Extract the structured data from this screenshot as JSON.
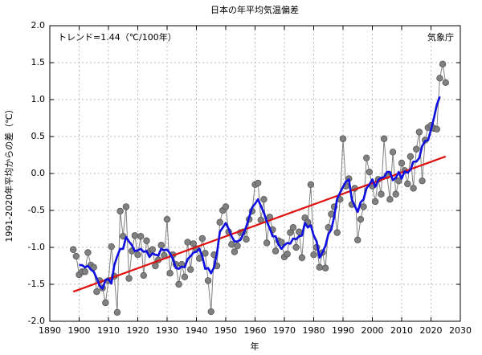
{
  "chart_data": {
    "type": "line",
    "title": "日本の年平均気温偏差",
    "x_label": "年",
    "y_label": "1991-2020年平均からの差（℃）",
    "annotations": [
      "トレンド=1.44（℃/100年）",
      "気象庁"
    ],
    "x": [
      1898,
      1899,
      1900,
      1901,
      1902,
      1903,
      1904,
      1905,
      1906,
      1907,
      1908,
      1909,
      1910,
      1911,
      1912,
      1913,
      1914,
      1915,
      1916,
      1917,
      1918,
      1919,
      1920,
      1921,
      1922,
      1923,
      1924,
      1925,
      1926,
      1927,
      1928,
      1929,
      1930,
      1931,
      1932,
      1933,
      1934,
      1935,
      1936,
      1937,
      1938,
      1939,
      1940,
      1941,
      1942,
      1943,
      1944,
      1945,
      1946,
      1947,
      1948,
      1949,
      1950,
      1951,
      1952,
      1953,
      1954,
      1955,
      1956,
      1957,
      1958,
      1959,
      1960,
      1961,
      1962,
      1963,
      1964,
      1965,
      1966,
      1967,
      1968,
      1969,
      1970,
      1971,
      1972,
      1973,
      1974,
      1975,
      1976,
      1977,
      1978,
      1979,
      1980,
      1981,
      1982,
      1983,
      1984,
      1985,
      1986,
      1987,
      1988,
      1989,
      1990,
      1991,
      1992,
      1993,
      1994,
      1995,
      1996,
      1997,
      1998,
      1999,
      2000,
      2001,
      2002,
      2003,
      2004,
      2005,
      2006,
      2007,
      2008,
      2009,
      2010,
      2011,
      2012,
      2013,
      2014,
      2015,
      2016,
      2017,
      2018,
      2019,
      2020,
      2021,
      2022,
      2023,
      2024,
      2025
    ],
    "series": [
      {
        "color": "#808080",
        "marker": "circle",
        "values": [
          -1.03,
          -1.12,
          -1.37,
          -1.33,
          -1.33,
          -1.07,
          -1.24,
          -1.27,
          -1.6,
          -1.45,
          -1.55,
          -1.75,
          -1.45,
          -0.99,
          -1.39,
          -1.88,
          -0.51,
          -0.85,
          -0.45,
          -1.42,
          -1.05,
          -0.84,
          -1.1,
          -0.85,
          -1.38,
          -0.91,
          -1.06,
          -1.03,
          -1.25,
          -1.17,
          -0.97,
          -1.11,
          -0.62,
          -1.35,
          -1.1,
          -1.23,
          -1.5,
          -1.23,
          -1.4,
          -0.93,
          -1.3,
          -0.95,
          -1.02,
          -1.15,
          -0.88,
          -1.08,
          -1.45,
          -1.87,
          -1.1,
          -1.25,
          -0.66,
          -0.5,
          -0.45,
          -0.79,
          -0.96,
          -1.06,
          -0.98,
          -0.8,
          -0.79,
          -0.89,
          -0.62,
          -0.51,
          -0.15,
          -0.13,
          -0.63,
          -0.35,
          -0.94,
          -0.59,
          -0.76,
          -1.05,
          -0.91,
          -0.93,
          -1.13,
          -1.09,
          -0.8,
          -0.73,
          -1.0,
          -0.79,
          -1.14,
          -0.6,
          -0.66,
          -0.15,
          -1.1,
          -1.0,
          -1.27,
          -1.07,
          -1.28,
          -0.73,
          -0.55,
          -0.45,
          -0.8,
          -0.35,
          0.47,
          -0.17,
          -0.07,
          -0.42,
          -0.2,
          -0.9,
          -0.62,
          -0.45,
          0.21,
          0.02,
          -0.17,
          -0.38,
          -0.08,
          -0.28,
          0.47,
          -0.03,
          -0.35,
          0.29,
          -0.28,
          -0.1,
          0.14,
          0.04,
          -0.14,
          0.23,
          -0.2,
          0.33,
          0.56,
          -0.1,
          0.45,
          0.62,
          0.65,
          0.61,
          0.6,
          1.29,
          1.48,
          1.23
        ]
      },
      {
        "color": "#1010e0",
        "values": [
          null,
          null,
          -1.24,
          -1.24,
          -1.27,
          -1.25,
          -1.3,
          -1.33,
          -1.42,
          -1.52,
          -1.56,
          -1.44,
          -1.43,
          -1.49,
          -1.24,
          -1.12,
          -1.02,
          -1.02,
          -0.86,
          -0.92,
          -0.97,
          -1.05,
          -1.04,
          -1.02,
          -1.06,
          -1.05,
          -1.13,
          -1.08,
          -1.1,
          -1.11,
          -1.02,
          -1.04,
          -1.03,
          -1.08,
          -1.16,
          -1.28,
          -1.29,
          -1.26,
          -1.27,
          -1.16,
          -1.12,
          -1.07,
          -1.06,
          -1.02,
          -1.12,
          -1.29,
          -1.28,
          -1.35,
          -1.27,
          -1.08,
          -0.79,
          -0.73,
          -0.67,
          -0.75,
          -0.85,
          -0.92,
          -0.92,
          -0.9,
          -0.82,
          -0.72,
          -0.59,
          -0.46,
          -0.41,
          -0.35,
          -0.44,
          -0.53,
          -0.65,
          -0.74,
          -0.85,
          -0.85,
          -0.96,
          -1.02,
          -0.97,
          -0.94,
          -0.95,
          -0.88,
          -0.89,
          -0.85,
          -0.84,
          -0.67,
          -0.73,
          -0.7,
          -0.84,
          -0.92,
          -1.14,
          -1.07,
          -0.98,
          -0.82,
          -0.76,
          -0.58,
          -0.34,
          -0.26,
          -0.18,
          -0.11,
          -0.08,
          -0.35,
          -0.44,
          -0.52,
          -0.39,
          -0.35,
          -0.2,
          -0.15,
          -0.08,
          -0.18,
          -0.09,
          -0.06,
          -0.05,
          0.02,
          0.02,
          -0.09,
          -0.06,
          0.02,
          -0.07,
          0.03,
          0.01,
          0.05,
          0.16,
          0.16,
          0.21,
          0.37,
          0.44,
          0.45,
          0.59,
          0.75,
          0.93,
          1.04,
          null,
          null
        ]
      }
    ],
    "trend": {
      "color": "#e01010",
      "x": [
        1898,
        2025
      ],
      "values": [
        -1.6,
        0.23
      ]
    },
    "xlim": [
      1890,
      2030
    ],
    "xticks": [
      1890,
      1900,
      1910,
      1920,
      1930,
      1940,
      1950,
      1960,
      1970,
      1980,
      1990,
      2000,
      2010,
      2020,
      2030
    ],
    "ylim": [
      -2,
      2
    ],
    "yticks": [
      {
        "value": -2,
        "label": "-2.0"
      },
      -1.5,
      {
        "value": -1,
        "label": "-1.0"
      },
      -0.5,
      {
        "value": 0,
        "label": "0.0"
      },
      0.5,
      {
        "value": 1,
        "label": "1.0"
      },
      1.5,
      {
        "value": 2,
        "label": "2.0"
      }
    ],
    "grid": true
  }
}
